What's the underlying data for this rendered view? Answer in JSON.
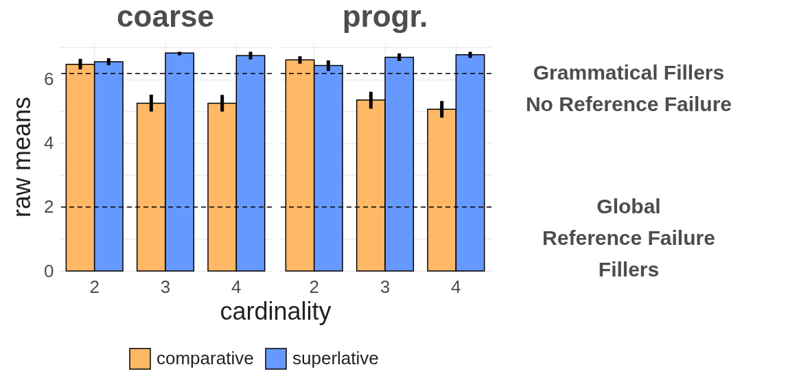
{
  "chart_data": [
    {
      "type": "bar",
      "title": "coarse",
      "xlabel": "cardinality",
      "ylabel": "raw means",
      "categories": [
        "2",
        "3",
        "4"
      ],
      "series": [
        {
          "name": "comparative",
          "color": "#ffb866",
          "values": [
            6.47,
            5.25,
            5.25
          ],
          "errors": [
            [
              6.31,
              6.64
            ],
            [
              4.99,
              5.52
            ],
            [
              4.99,
              5.51
            ]
          ]
        },
        {
          "name": "superlative",
          "color": "#6699ff",
          "values": [
            6.55,
            6.82,
            6.74
          ],
          "errors": [
            [
              6.44,
              6.66
            ],
            [
              6.75,
              6.86
            ],
            [
              6.62,
              6.86
            ]
          ]
        }
      ],
      "ylim": [
        0,
        7.15
      ],
      "yticks": [
        0,
        {
          "value": 1,
          "label": null
        },
        2,
        {
          "value": 3,
          "label": null
        },
        4,
        {
          "value": 5,
          "label": null
        },
        6,
        {
          "value": 7,
          "label": null
        }
      ],
      "ref_lines": [
        {
          "axis": "y",
          "value": 6.18,
          "line_style": "dashed",
          "color": "#000000"
        },
        {
          "axis": "y",
          "value": 2,
          "line_style": "dashed",
          "color": "#000000"
        }
      ],
      "grid": true,
      "legend": "bottom"
    },
    {
      "type": "bar",
      "title": "progr.",
      "categories": [
        "2",
        "3",
        "4"
      ],
      "series": [
        {
          "name": "comparative",
          "color": "#ffb866",
          "values": [
            6.61,
            5.35,
            5.06
          ],
          "errors": [
            [
              6.49,
              6.72
            ],
            [
              5.08,
              5.61
            ],
            [
              4.8,
              5.32
            ]
          ]
        },
        {
          "name": "superlative",
          "color": "#6699ff",
          "values": [
            6.43,
            6.69,
            6.77
          ],
          "errors": [
            [
              6.26,
              6.59
            ],
            [
              6.57,
              6.81
            ],
            [
              6.67,
              6.86
            ]
          ]
        }
      ],
      "ylim": [
        0,
        7.15
      ],
      "yticks": [
        0,
        {
          "value": 1,
          "label": null
        },
        2,
        {
          "value": 3,
          "label": null
        },
        4,
        {
          "value": 5,
          "label": null
        },
        6,
        {
          "value": 7,
          "label": null
        }
      ],
      "ref_lines": [
        {
          "axis": "y",
          "value": 6.18,
          "label": "Grammatical Fillers\nNo Reference Failure",
          "line_style": "dashed",
          "color": "#000000"
        },
        {
          "axis": "y",
          "value": 2,
          "label": "Global\nReference Failure\nFillers",
          "line_style": "dashed",
          "color": "#000000"
        }
      ],
      "grid": true,
      "tick_labels": "x",
      "legend": "bottom"
    }
  ]
}
